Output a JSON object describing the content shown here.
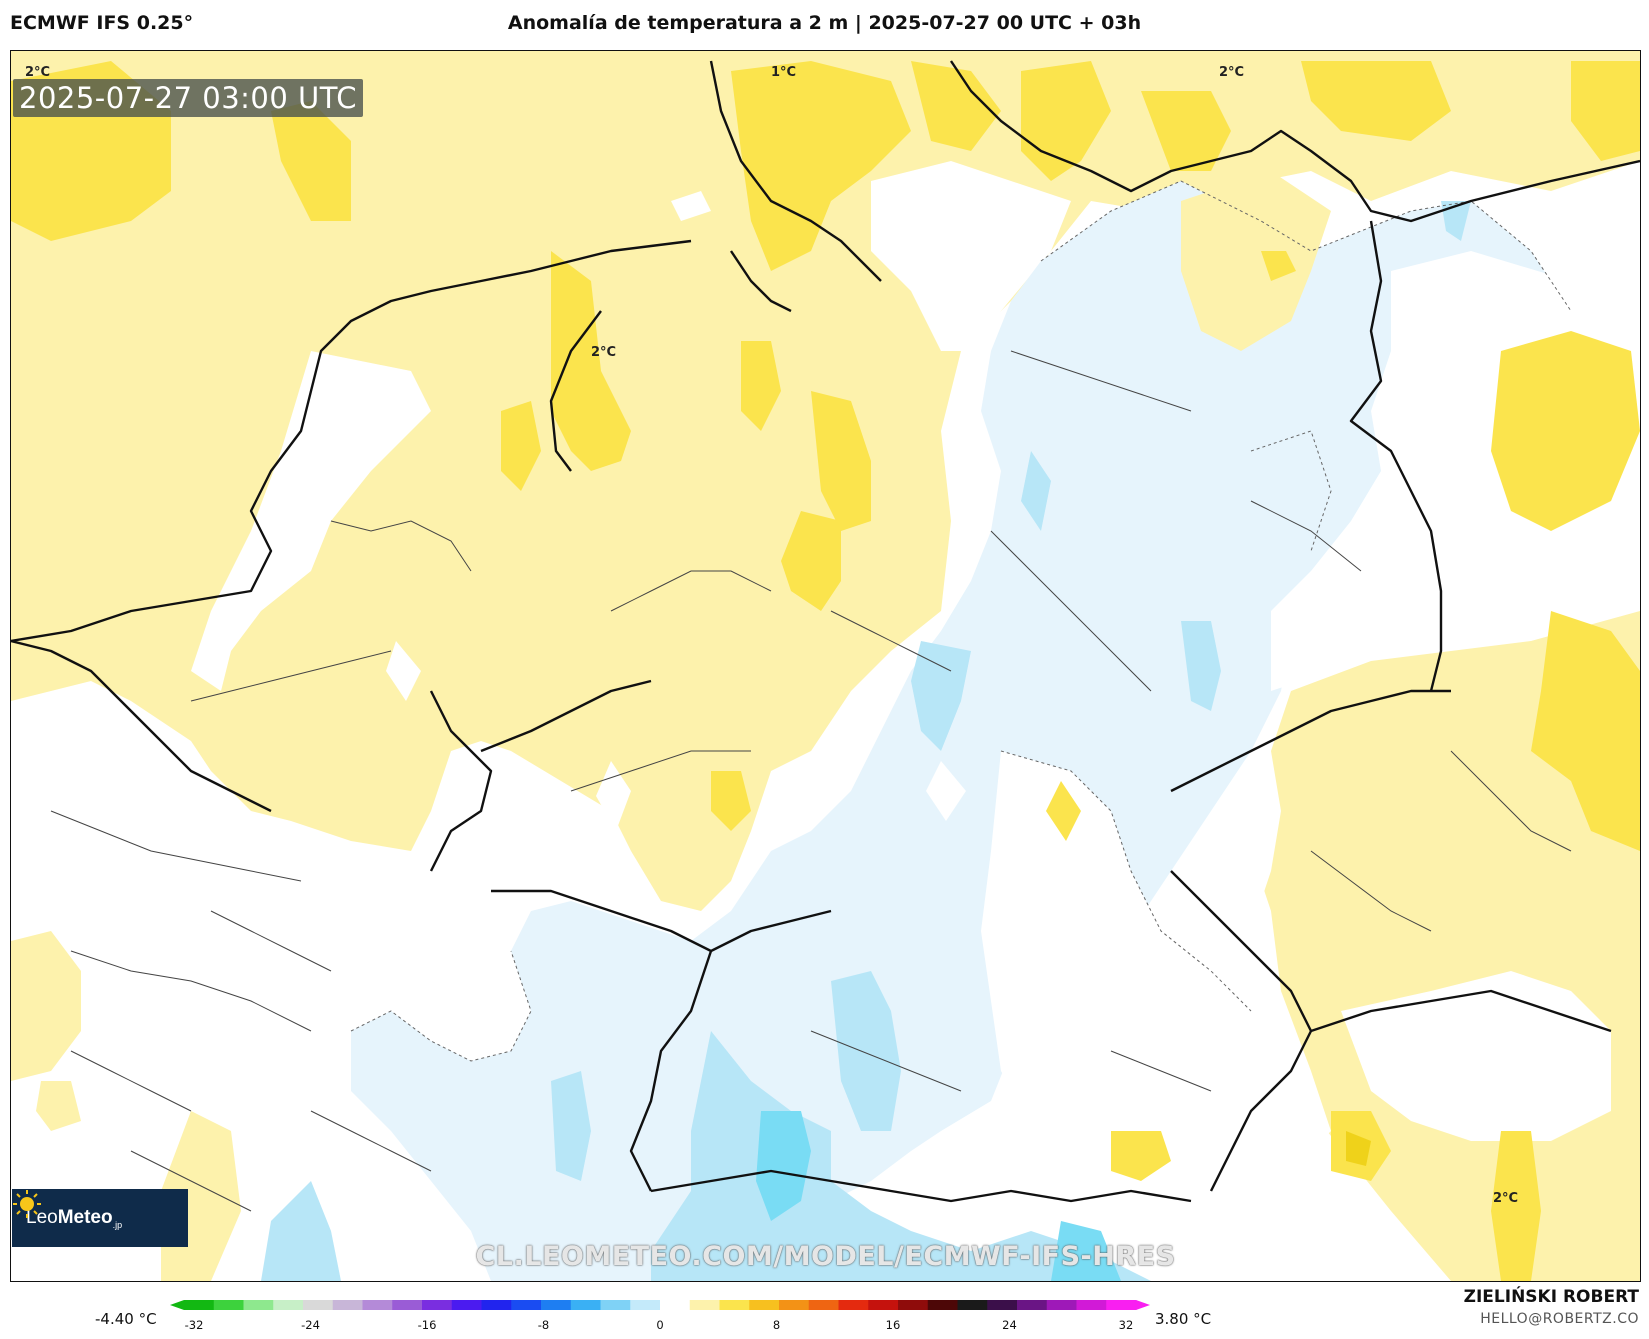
{
  "header": {
    "model": "ECMWF IFS 0.25°",
    "title": "Anomalía de temperatura a 2 m | 2025-07-27 00 UTC + 03h"
  },
  "map": {
    "valid_time": "2025-07-27 03:00 UTC",
    "contour_labels": [
      "2°C",
      "1°C",
      "2°C",
      "2°C",
      "2°C"
    ],
    "watermark": "CL.LEOMETEO.COM/MODEL/ECMWF-IFS-HRES",
    "logo": {
      "name_part1": "Leo",
      "name_part2": "Meteo",
      "tld": ".jp"
    },
    "colors": {
      "pale_yellow": "#fdf2ac",
      "yellow": "#fbe44d",
      "dark_yellow": "#efd21a",
      "pale_blue": "#e6f4fc",
      "light_blue": "#b7e6f7",
      "cyan": "#79dcf4",
      "white": "#ffffff",
      "borders": "#222222"
    }
  },
  "legend": {
    "min_label": "-4.40 °C",
    "max_label": "3.80 °C",
    "ticks": [
      "-32",
      "-24",
      "-16",
      "-8",
      "0",
      "8",
      "16",
      "24",
      "32"
    ],
    "colors": [
      "#12b812",
      "#3dd23d",
      "#8ee88e",
      "#c7efc7",
      "#d9d9d9",
      "#c8b6d8",
      "#b48ad8",
      "#9a5cd6",
      "#7a2ee0",
      "#4b1bf0",
      "#2124ee",
      "#1a4cf2",
      "#1e7ef2",
      "#3ab0f4",
      "#7fd2f6",
      "#c4eafa",
      "#ffffff",
      "#fdf2ac",
      "#fbe44d",
      "#f7c01f",
      "#f39216",
      "#ef6512",
      "#e42a0f",
      "#c5120d",
      "#8f0c0b",
      "#4d0707",
      "#1a1a1a",
      "#3b0f4a",
      "#6a1585",
      "#9e19b8",
      "#d11ad7",
      "#f91ff1"
    ]
  },
  "credits": {
    "author": "ZIELIŃSKI ROBERT",
    "email": "HELLO@ROBERTZ.CO"
  }
}
